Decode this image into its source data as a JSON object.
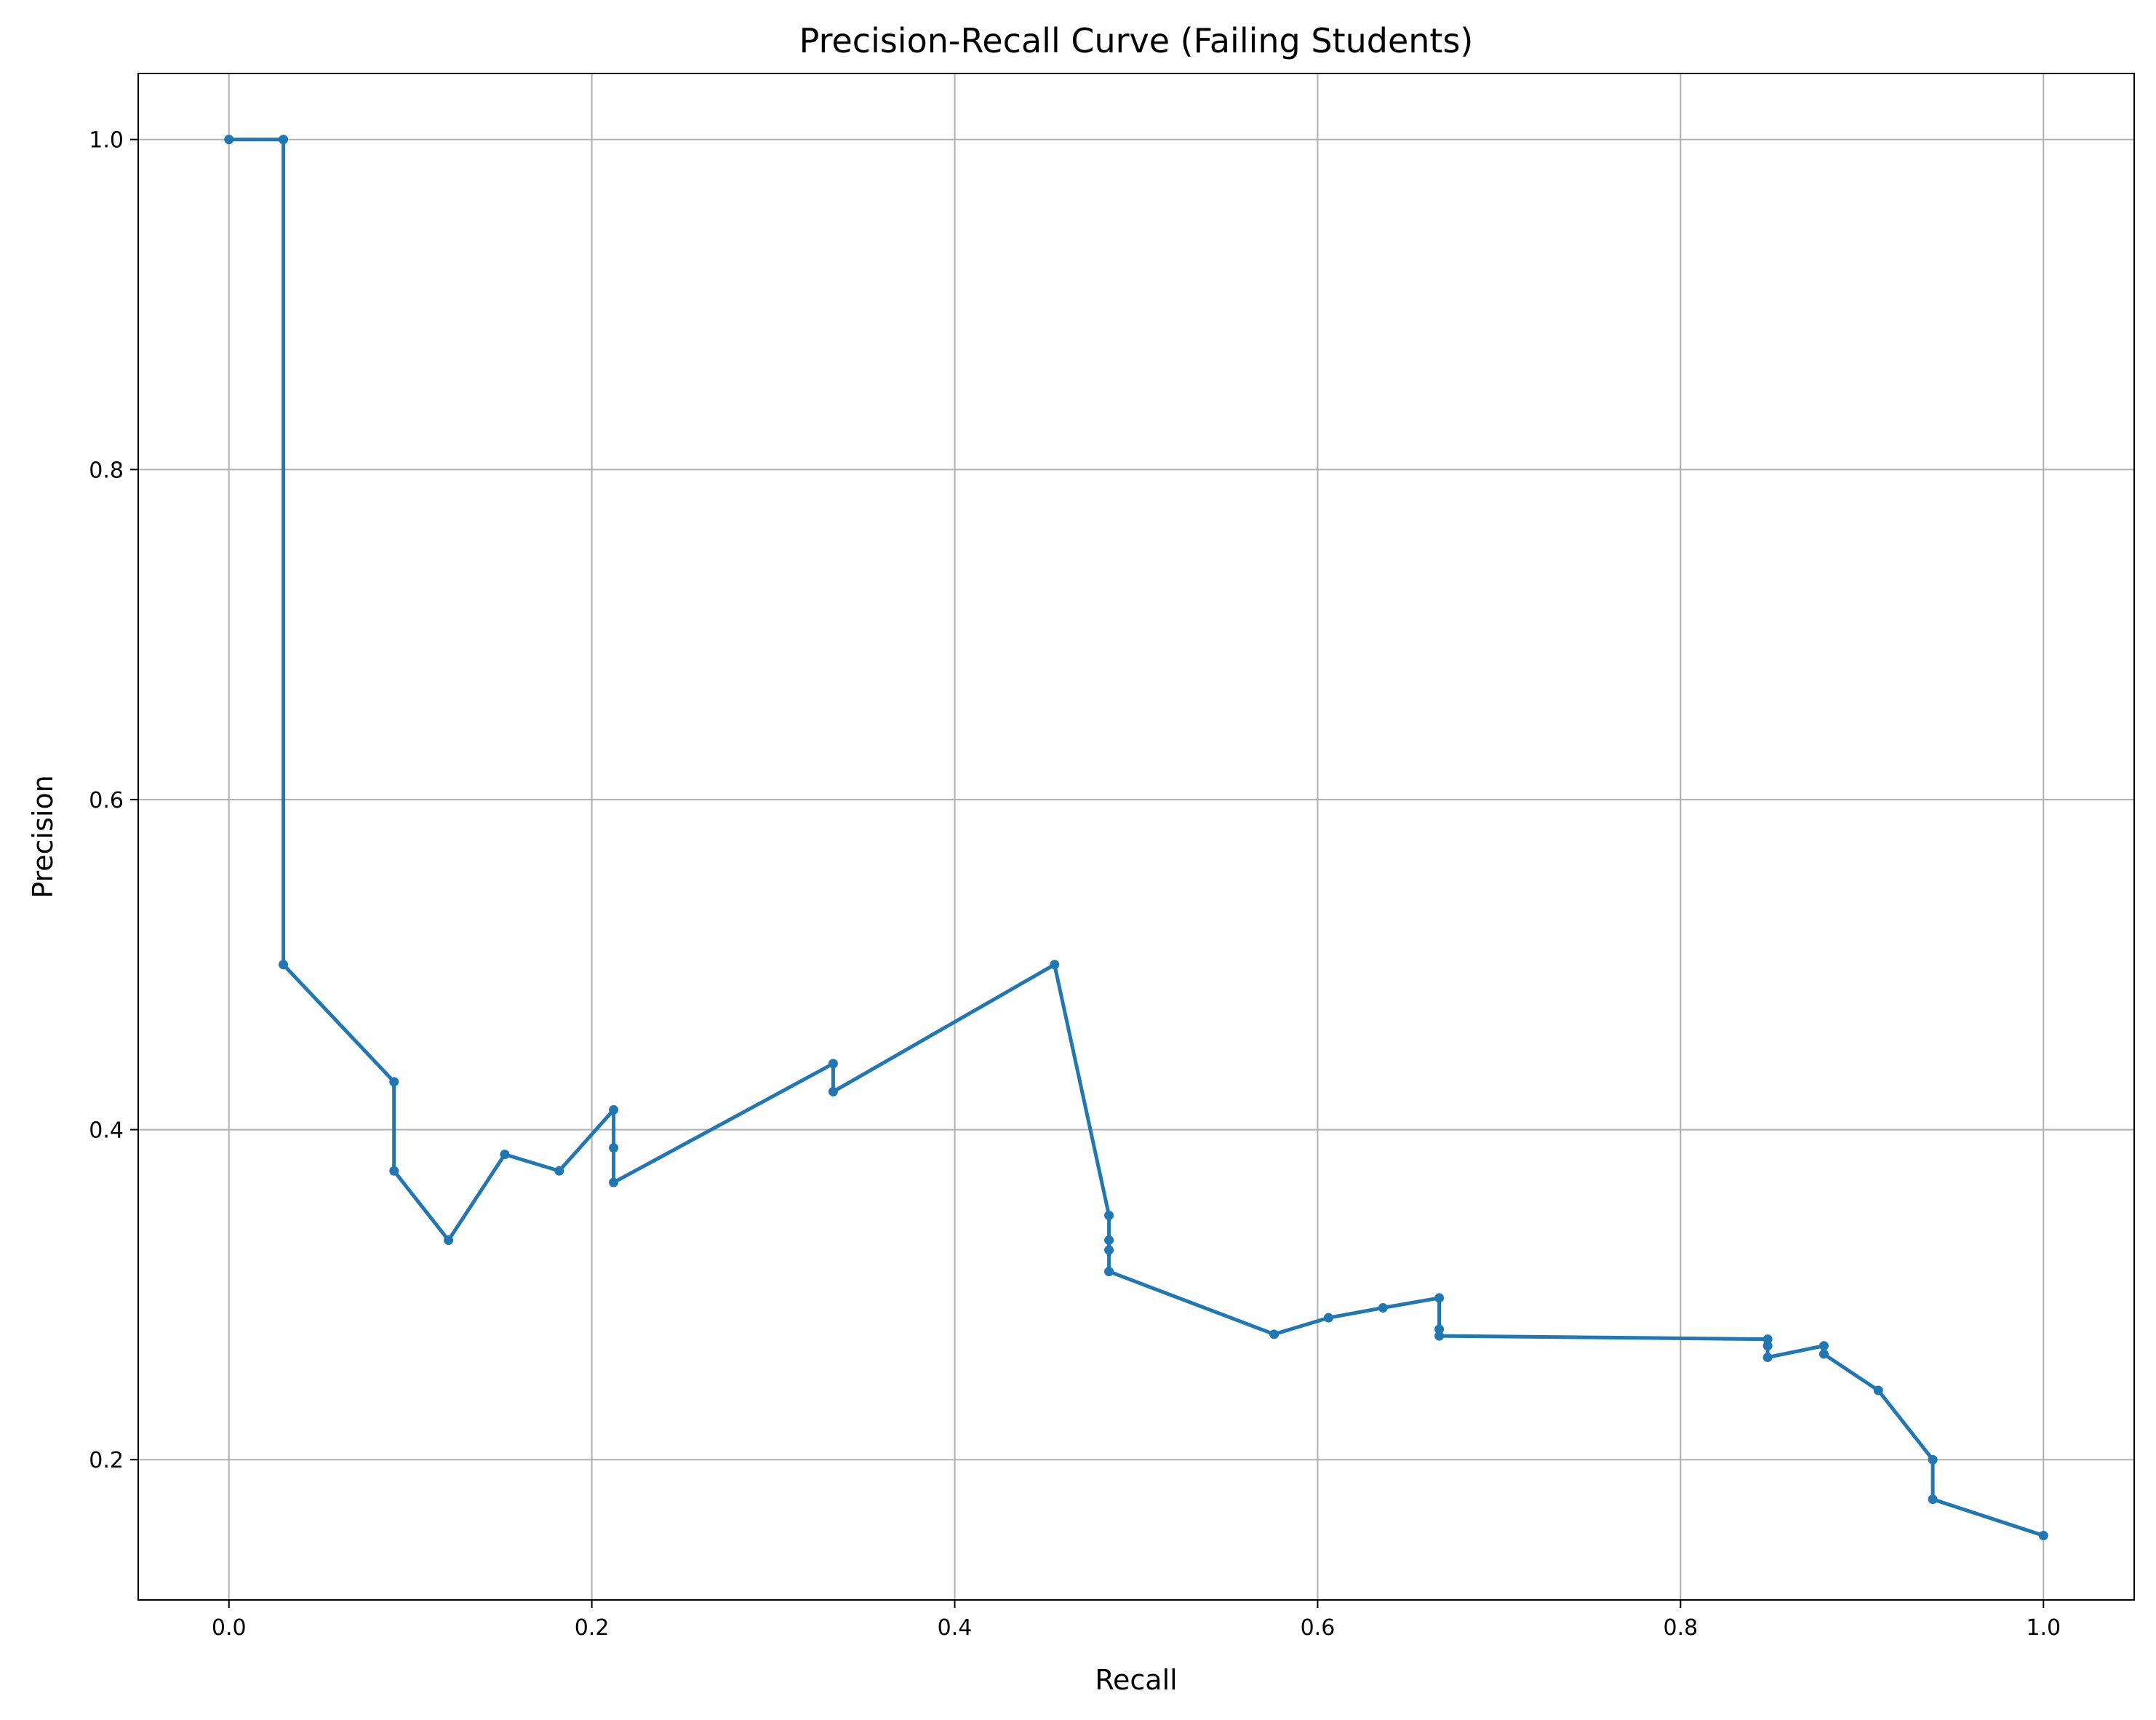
{
  "chart_data": {
    "type": "line",
    "title": "Precision-Recall Curve (Failing Students)",
    "xlabel": "Recall",
    "ylabel": "Precision",
    "xlim": [
      -0.05,
      1.05
    ],
    "ylim": [
      0.115,
      1.04
    ],
    "xticks": [
      0.0,
      0.2,
      0.4,
      0.6,
      0.8,
      1.0
    ],
    "xtick_labels": [
      "0.0",
      "0.2",
      "0.4",
      "0.6",
      "0.8",
      "1.0"
    ],
    "yticks": [
      0.2,
      0.4,
      0.6,
      0.8,
      1.0
    ],
    "ytick_labels": [
      "0.2",
      "0.4",
      "0.6",
      "0.8",
      "1.0"
    ],
    "grid": true,
    "legend": false,
    "line_color": "#1f77b4",
    "marker": "circle",
    "series": [
      {
        "x": [
          0.0,
          0.03,
          0.03,
          0.091,
          0.091,
          0.121,
          0.152,
          0.182,
          0.212,
          0.212,
          0.212,
          0.333,
          0.333,
          0.455,
          0.485,
          0.485,
          0.485,
          0.485,
          0.576,
          0.606,
          0.636,
          0.667,
          0.667,
          0.667,
          0.848,
          0.848,
          0.848,
          0.879,
          0.879,
          0.909,
          0.939,
          0.939,
          1.0
        ],
        "y": [
          1.0,
          1.0,
          0.5,
          0.429,
          0.375,
          0.333,
          0.385,
          0.375,
          0.412,
          0.389,
          0.368,
          0.44,
          0.423,
          0.5,
          0.348,
          0.333,
          0.327,
          0.314,
          0.276,
          0.286,
          0.292,
          0.298,
          0.279,
          0.275,
          0.273,
          0.269,
          0.262,
          0.269,
          0.264,
          0.242,
          0.2,
          0.176,
          0.154
        ]
      }
    ]
  }
}
